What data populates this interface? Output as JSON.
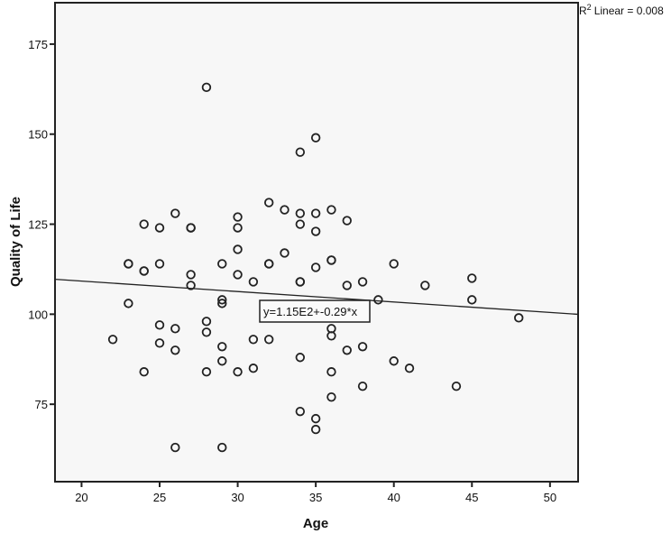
{
  "chart_data": {
    "type": "scatter",
    "title": "",
    "xlabel": "Age",
    "ylabel": "Quality of Life",
    "xlim": [
      18.3,
      51.8
    ],
    "ylim": [
      53.5,
      186.5
    ],
    "x_ticks": [
      20,
      25,
      30,
      35,
      40,
      45,
      50
    ],
    "y_ticks": [
      75,
      100,
      125,
      150,
      175
    ],
    "grid": false,
    "legend": null,
    "fit_line": {
      "type": "linear",
      "intercept": 115,
      "slope": -0.29,
      "equation_label": "y=1.15E2+-0.29*x",
      "r2_label": "Linear = 0.008",
      "r2_prefix": "R",
      "r2_sup": "2"
    },
    "points": [
      [
        22,
        93
      ],
      [
        23,
        114
      ],
      [
        23,
        114
      ],
      [
        23,
        103
      ],
      [
        24,
        125
      ],
      [
        24,
        112
      ],
      [
        24,
        112
      ],
      [
        24,
        84
      ],
      [
        25,
        124
      ],
      [
        25,
        114
      ],
      [
        25,
        97
      ],
      [
        25,
        92
      ],
      [
        26,
        128
      ],
      [
        26,
        96
      ],
      [
        26,
        90
      ],
      [
        26,
        63
      ],
      [
        27,
        124
      ],
      [
        27,
        124
      ],
      [
        27,
        111
      ],
      [
        27,
        108
      ],
      [
        28,
        163
      ],
      [
        28,
        98
      ],
      [
        28,
        95
      ],
      [
        28,
        84
      ],
      [
        29,
        114
      ],
      [
        29,
        104
      ],
      [
        29,
        103
      ],
      [
        29,
        91
      ],
      [
        29,
        87
      ],
      [
        29,
        63
      ],
      [
        30,
        127
      ],
      [
        30,
        124
      ],
      [
        30,
        118
      ],
      [
        30,
        111
      ],
      [
        30,
        84
      ],
      [
        31,
        109
      ],
      [
        31,
        93
      ],
      [
        31,
        85
      ],
      [
        32,
        131
      ],
      [
        32,
        114
      ],
      [
        32,
        114
      ],
      [
        32,
        93
      ],
      [
        33,
        129
      ],
      [
        33,
        117
      ],
      [
        34,
        145
      ],
      [
        34,
        128
      ],
      [
        34,
        125
      ],
      [
        34,
        109
      ],
      [
        34,
        109
      ],
      [
        34,
        88
      ],
      [
        34,
        73
      ],
      [
        35,
        149
      ],
      [
        35,
        128
      ],
      [
        35,
        123
      ],
      [
        35,
        113
      ],
      [
        35,
        71
      ],
      [
        35,
        68
      ],
      [
        36,
        129
      ],
      [
        36,
        115
      ],
      [
        36,
        115
      ],
      [
        36,
        99
      ],
      [
        36,
        96
      ],
      [
        36,
        94
      ],
      [
        36,
        84
      ],
      [
        36,
        77
      ],
      [
        37,
        126
      ],
      [
        37,
        108
      ],
      [
        37,
        101
      ],
      [
        37,
        100
      ],
      [
        37,
        90
      ],
      [
        38,
        109
      ],
      [
        38,
        91
      ],
      [
        38,
        80
      ],
      [
        39,
        104
      ],
      [
        40,
        114
      ],
      [
        40,
        87
      ],
      [
        41,
        85
      ],
      [
        42,
        108
      ],
      [
        44,
        80
      ],
      [
        45,
        110
      ],
      [
        45,
        104
      ],
      [
        48,
        99
      ]
    ]
  },
  "colors": {
    "plot_background": "#f7f7f7",
    "page_background": "#ffffff",
    "axis": "#222222",
    "marker_stroke": "#222222"
  }
}
